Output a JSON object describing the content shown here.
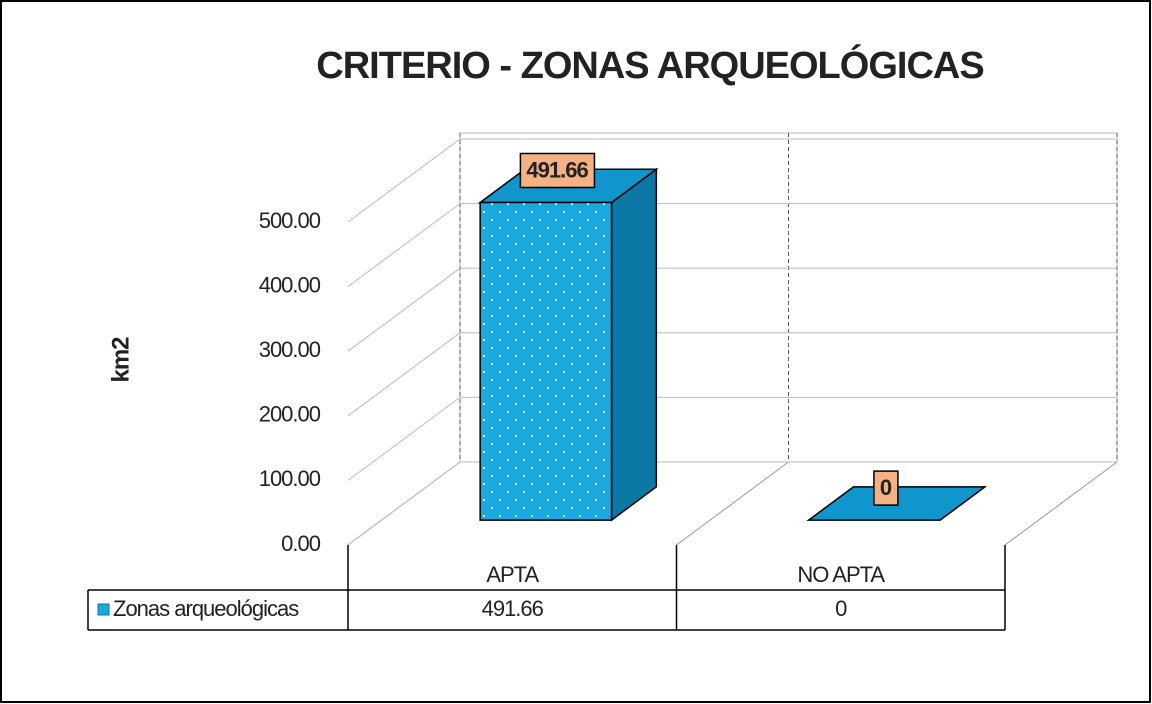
{
  "chart_data": {
    "type": "bar3d",
    "title": "CRITERIO - ZONAS ARQUEOLÓGICAS",
    "y_label": "km2",
    "categories": [
      "APTA",
      "NO APTA"
    ],
    "series": [
      {
        "name": "Zonas arqueológicas",
        "color": "#1aa8e0",
        "values": [
          491.66,
          0
        ]
      }
    ],
    "ylim": [
      0,
      500
    ],
    "yticks": [
      {
        "value": 0,
        "label": "0.00"
      },
      {
        "value": 100,
        "label": "100.00"
      },
      {
        "value": 200,
        "label": "200.00"
      },
      {
        "value": 300,
        "label": "300.00"
      },
      {
        "value": 400,
        "label": "400.00"
      },
      {
        "value": 500,
        "label": "500.00"
      }
    ],
    "grid": true,
    "label_color": "#f4b183",
    "data_table": true
  }
}
